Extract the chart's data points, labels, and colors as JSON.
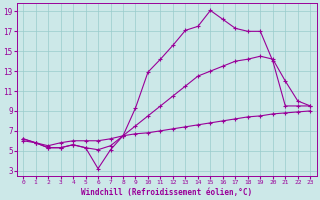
{
  "xlabel": "Windchill (Refroidissement éolien,°C)",
  "bg_color": "#cce8e8",
  "grid_color": "#99cccc",
  "line_color": "#990099",
  "xlim": [
    -0.5,
    23.5
  ],
  "ylim": [
    2.5,
    19.8
  ],
  "xticks": [
    0,
    1,
    2,
    3,
    4,
    5,
    6,
    7,
    8,
    9,
    10,
    11,
    12,
    13,
    14,
    15,
    16,
    17,
    18,
    19,
    20,
    21,
    22,
    23
  ],
  "yticks": [
    3,
    5,
    7,
    9,
    11,
    13,
    15,
    17,
    19
  ],
  "series": [
    {
      "x": [
        0,
        1,
        2,
        3,
        4,
        5,
        6,
        7,
        8,
        9,
        10,
        11,
        12,
        13,
        14,
        15,
        16,
        17,
        18,
        19,
        20,
        21,
        22,
        23
      ],
      "y": [
        6.2,
        5.8,
        5.3,
        5.3,
        5.6,
        5.3,
        3.2,
        5.1,
        6.5,
        9.3,
        12.9,
        14.2,
        15.6,
        17.1,
        17.5,
        19.1,
        18.2,
        17.3,
        17.0,
        17.0,
        14.0,
        9.5,
        9.5,
        9.5
      ]
    },
    {
      "x": [
        0,
        1,
        2,
        3,
        4,
        5,
        6,
        7,
        8,
        9,
        10,
        11,
        12,
        13,
        14,
        15,
        16,
        17,
        18,
        19,
        20,
        21,
        22,
        23
      ],
      "y": [
        6.2,
        5.8,
        5.3,
        5.3,
        5.6,
        5.3,
        5.1,
        5.5,
        6.5,
        7.5,
        8.5,
        9.5,
        10.5,
        11.5,
        12.5,
        13.0,
        13.5,
        14.0,
        14.2,
        14.5,
        14.2,
        12.0,
        10.0,
        9.5
      ]
    },
    {
      "x": [
        0,
        1,
        2,
        3,
        4,
        5,
        6,
        7,
        8,
        9,
        10,
        11,
        12,
        13,
        14,
        15,
        16,
        17,
        18,
        19,
        20,
        21,
        22,
        23
      ],
      "y": [
        6.0,
        5.8,
        5.5,
        5.8,
        6.0,
        6.0,
        6.0,
        6.2,
        6.5,
        6.7,
        6.8,
        7.0,
        7.2,
        7.4,
        7.6,
        7.8,
        8.0,
        8.2,
        8.4,
        8.5,
        8.7,
        8.8,
        8.9,
        9.0
      ]
    }
  ]
}
